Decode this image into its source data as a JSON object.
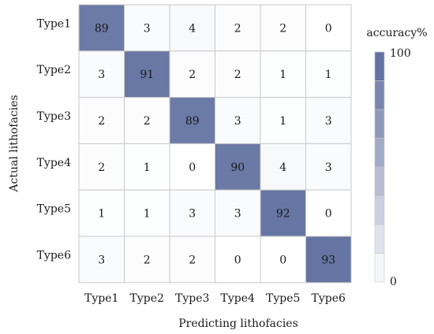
{
  "chart_data": {
    "type": "heatmap",
    "x_categories": [
      "Type1",
      "Type2",
      "Type3",
      "Type4",
      "Type5",
      "Type6"
    ],
    "y_categories": [
      "Type1",
      "Type2",
      "Type3",
      "Type4",
      "Type5",
      "Type6"
    ],
    "values": [
      [
        89,
        3,
        4,
        2,
        2,
        0
      ],
      [
        3,
        91,
        2,
        2,
        1,
        1
      ],
      [
        2,
        2,
        89,
        3,
        1,
        3
      ],
      [
        2,
        1,
        0,
        90,
        4,
        3
      ],
      [
        1,
        1,
        3,
        3,
        92,
        0
      ],
      [
        3,
        2,
        2,
        0,
        0,
        93
      ]
    ],
    "xlabel": "Predicting lithofacies",
    "ylabel": "Actual lithofacies",
    "colorbar": {
      "title": "accuracy%",
      "min_label": "0",
      "max_label": "100",
      "range": [
        0,
        100
      ],
      "levels": 8
    },
    "colors": {
      "low": "#ffffff",
      "high": "#5a6a9c",
      "grid": "#c9c9c9",
      "text_dark": "#1a1a1a"
    }
  }
}
